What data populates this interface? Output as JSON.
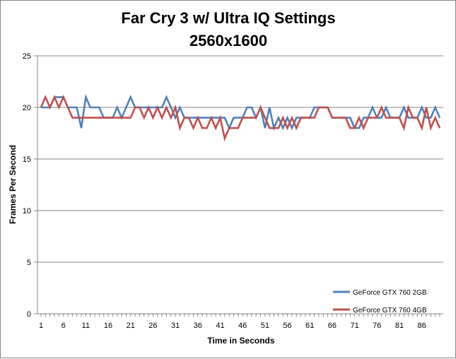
{
  "chart_data": {
    "type": "line",
    "title": "Far Cry 3 w/ Ultra IQ Settings",
    "subtitle": "2560x1600",
    "xlabel": "Time in Seconds",
    "ylabel": "Frames Per Second",
    "ylim": [
      0,
      25
    ],
    "yticks": [
      0,
      5,
      10,
      15,
      20,
      25
    ],
    "xlim": [
      1,
      90
    ],
    "xticks": [
      1,
      6,
      11,
      16,
      21,
      26,
      31,
      36,
      41,
      46,
      51,
      56,
      61,
      66,
      71,
      76,
      81,
      86
    ],
    "grid": "horizontal",
    "legend_position": "bottom-right",
    "x": [
      1,
      2,
      3,
      4,
      5,
      6,
      7,
      8,
      9,
      10,
      11,
      12,
      13,
      14,
      15,
      16,
      17,
      18,
      19,
      20,
      21,
      22,
      23,
      24,
      25,
      26,
      27,
      28,
      29,
      30,
      31,
      32,
      33,
      34,
      35,
      36,
      37,
      38,
      39,
      40,
      41,
      42,
      43,
      44,
      45,
      46,
      47,
      48,
      49,
      50,
      51,
      52,
      53,
      54,
      55,
      56,
      57,
      58,
      59,
      60,
      61,
      62,
      63,
      64,
      65,
      66,
      67,
      68,
      69,
      70,
      71,
      72,
      73,
      74,
      75,
      76,
      77,
      78,
      79,
      80,
      81,
      82,
      83,
      84,
      85,
      86,
      87,
      88,
      89,
      90
    ],
    "series": [
      {
        "name": "GeForce GTX 760 2GB",
        "color": "#4f81bd",
        "values": [
          20,
          20,
          20,
          21,
          21,
          21,
          20,
          20,
          20,
          18,
          21,
          20,
          20,
          20,
          19,
          19,
          19,
          20,
          19,
          20,
          21,
          20,
          20,
          20,
          20,
          20,
          20,
          20,
          21,
          20,
          19,
          20,
          19,
          19,
          19,
          19,
          19,
          19,
          19,
          19,
          19,
          19,
          18,
          19,
          19,
          19,
          20,
          20,
          19,
          20,
          18,
          20,
          18,
          19,
          18,
          19,
          18,
          19,
          19,
          19,
          19,
          20,
          20,
          20,
          20,
          19,
          19,
          19,
          19,
          19,
          18,
          18,
          19,
          19,
          20,
          19,
          19,
          20,
          19,
          19,
          19,
          20,
          19,
          19,
          19,
          20,
          19,
          19,
          20,
          19
        ]
      },
      {
        "name": "GeForce GTX 760 4GB",
        "color": "#c0504d",
        "values": [
          20,
          21,
          20,
          21,
          20,
          21,
          20,
          19,
          19,
          19,
          19,
          19,
          19,
          19,
          19,
          19,
          19,
          19,
          19,
          19,
          19,
          20,
          20,
          19,
          20,
          19,
          20,
          19,
          20,
          19,
          20,
          18,
          19,
          19,
          18,
          19,
          18,
          18,
          19,
          18,
          19,
          17,
          18,
          18,
          18,
          19,
          19,
          19,
          19,
          20,
          19,
          18,
          18,
          18,
          19,
          18,
          19,
          18,
          19,
          19,
          19,
          19,
          20,
          20,
          20,
          19,
          19,
          19,
          19,
          18,
          18,
          19,
          18,
          19,
          19,
          19,
          20,
          19,
          19,
          19,
          19,
          18,
          20,
          19,
          19,
          18,
          20,
          18,
          19,
          18
        ]
      }
    ]
  }
}
